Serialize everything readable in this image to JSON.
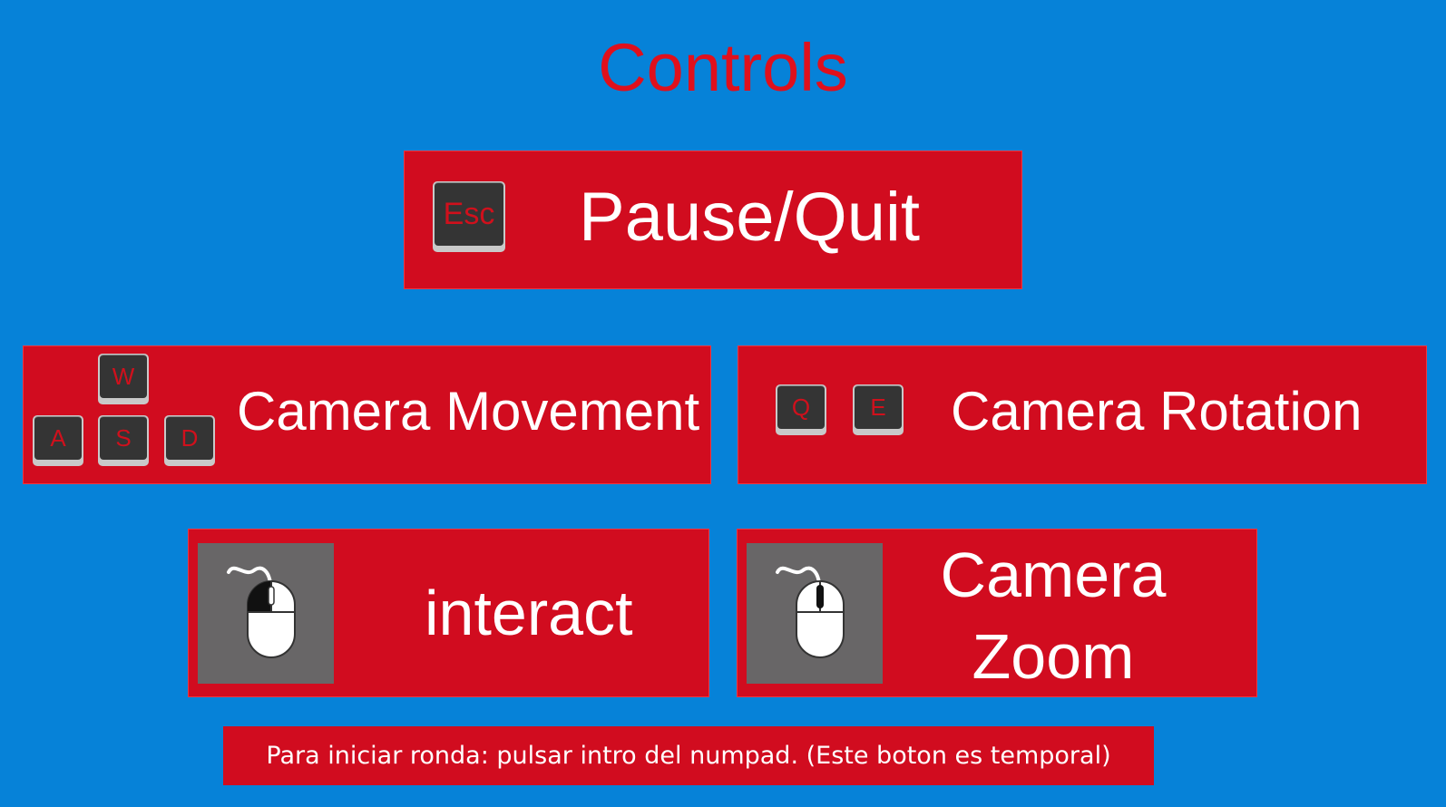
{
  "screen": {
    "title": "Controls"
  },
  "controls": {
    "pause": {
      "key": "Esc",
      "label": "Pause/Quit"
    },
    "movement": {
      "keys": [
        "W",
        "A",
        "S",
        "D"
      ],
      "label": "Camera Movement"
    },
    "rotation": {
      "keys": [
        "Q",
        "E"
      ],
      "label": "Camera Rotation"
    },
    "interact": {
      "icon": "mouse-left-click-icon",
      "label": "interact"
    },
    "zoom": {
      "icon": "mouse-scroll-wheel-icon",
      "label_line1": "Camera",
      "label_line2": "Zoom"
    }
  },
  "footer": {
    "text": "Para iniciar ronda: pulsar intro del numpad. (Este boton es temporal)"
  },
  "colors": {
    "background": "#0682d8",
    "panel": "#d10c1f",
    "title": "#e0101c",
    "key_cap": "#343434",
    "key_glyph": "#d0101c",
    "icon_box": "#686667"
  }
}
